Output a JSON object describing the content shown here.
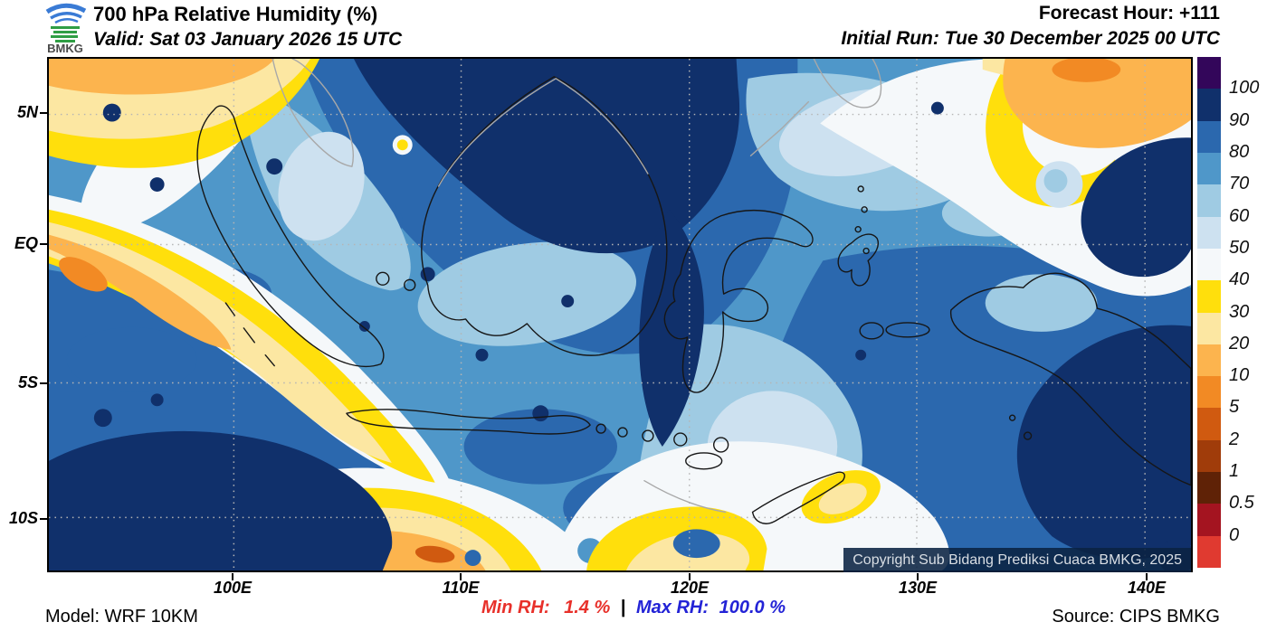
{
  "header": {
    "title": "700 hPa Relative Humidity (%)",
    "valid": "Valid: Sat 03 January 2026 15 UTC",
    "forecast_hour": "Forecast Hour: +111",
    "initial_run": "Initial Run: Tue 30 December 2025 00 UTC",
    "logo_text": "BMKG"
  },
  "map": {
    "lat_labels": [
      "5N",
      "EQ",
      "5S",
      "10S"
    ],
    "lon_labels": [
      "100E",
      "110E",
      "120E",
      "130E",
      "140E"
    ],
    "copyright": "Copyright Sub Bidang Prediksi Cuaca BMKG, 2025"
  },
  "legend": {
    "unit": "%",
    "labels": [
      "100",
      "90",
      "80",
      "70",
      "60",
      "50",
      "40",
      "30",
      "20",
      "10",
      "5",
      "2",
      "1",
      "0.5",
      "0"
    ],
    "colors": [
      "#33065a",
      "#10306b",
      "#2b68ae",
      "#4f97c9",
      "#9fcbe3",
      "#cde1f0",
      "#f5f8fa",
      "#ffdf0c",
      "#fce7a2",
      "#fcb44e",
      "#f28a24",
      "#d05a10",
      "#a03c0a",
      "#5f2206",
      "#a41420",
      "#e03a30"
    ]
  },
  "footer": {
    "model": "Model: WRF 10KM",
    "min_rh_label": "Min RH:",
    "min_rh_value": "1.4 %",
    "separator": "|",
    "max_rh_label": "Max RH:",
    "max_rh_value": "100.0 %",
    "source": "Source: CIPS BMKG"
  },
  "colors": {
    "min_rh_text": "#e8302a",
    "max_rh_text": "#2323d6",
    "map_border": "#000000",
    "coastline": "#161616",
    "foreign_coastline": "#a8a8a8",
    "gridline": "#b5b5b5",
    "copyright_bg": "#0a2242"
  }
}
